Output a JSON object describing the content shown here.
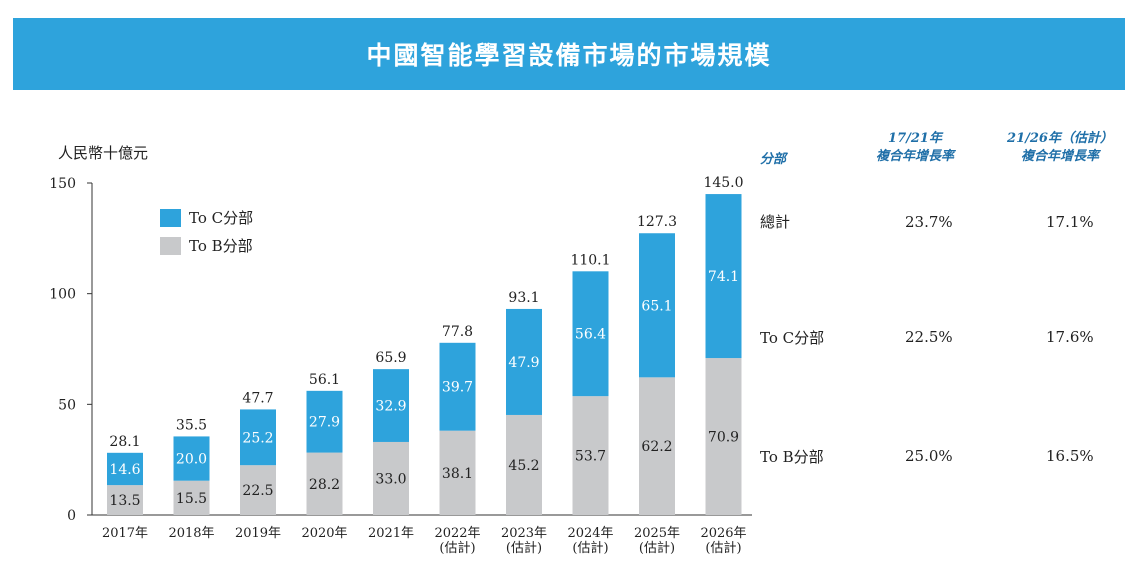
{
  "banner": {
    "title": "中國智能學習設備市場的市場規模"
  },
  "chart_data": {
    "type": "bar",
    "stacked": true,
    "unit_label": "人民幣十億元",
    "categories": [
      [
        "2017年"
      ],
      [
        "2018年"
      ],
      [
        "2019年"
      ],
      [
        "2020年"
      ],
      [
        "2021年"
      ],
      [
        "2022年",
        "(估計)"
      ],
      [
        "2023年",
        "(估計)"
      ],
      [
        "2024年",
        "(估計)"
      ],
      [
        "2025年",
        "(估計)"
      ],
      [
        "2026年",
        "(估計)"
      ]
    ],
    "series": [
      {
        "name": "To B分部",
        "color": "#c8c9cb",
        "values": [
          13.5,
          15.5,
          22.5,
          28.2,
          33.0,
          38.1,
          45.2,
          53.7,
          62.2,
          70.9
        ]
      },
      {
        "name": "To C分部",
        "color": "#2ea3dc",
        "values": [
          14.6,
          20.0,
          25.2,
          27.9,
          32.9,
          39.7,
          47.9,
          56.4,
          65.1,
          74.1
        ]
      }
    ],
    "totals": [
      28.1,
      35.5,
      47.7,
      56.1,
      65.9,
      77.8,
      93.1,
      110.1,
      127.3,
      145.0
    ],
    "ylim": [
      0,
      150
    ],
    "yticks": [
      0,
      50,
      100,
      150
    ],
    "legend_position": "top-left",
    "grid": false
  },
  "growth_table": {
    "headers": {
      "segment": "分部",
      "cagr1_line1": "17/21年",
      "cagr1_line2": "複合年增長率",
      "cagr2_line1": "21/26年（估計）",
      "cagr2_line2": "複合年增長率"
    },
    "rows": [
      {
        "segment": "總計",
        "cagr1": "23.7%",
        "cagr2": "17.1%"
      },
      {
        "segment": "To C分部",
        "cagr1": "22.5%",
        "cagr2": "17.6%"
      },
      {
        "segment": "To B分部",
        "cagr1": "25.0%",
        "cagr2": "16.5%"
      }
    ]
  }
}
